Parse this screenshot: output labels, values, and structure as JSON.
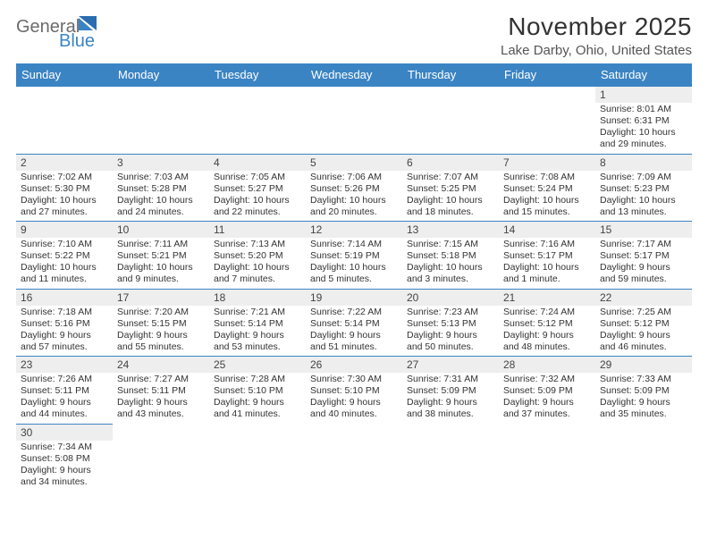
{
  "brand": {
    "word1": "General",
    "word2": "Blue",
    "text_color": "#6b6b6b",
    "accent_color": "#3b84c4"
  },
  "header": {
    "title": "November 2025",
    "location": "Lake Darby, Ohio, United States"
  },
  "colors": {
    "header_bg": "#3b84c4",
    "header_text": "#ffffff",
    "daynum_bg": "#eeeeee",
    "border": "#3b84c4"
  },
  "weekdays": [
    "Sunday",
    "Monday",
    "Tuesday",
    "Wednesday",
    "Thursday",
    "Friday",
    "Saturday"
  ],
  "weeks": [
    [
      null,
      null,
      null,
      null,
      null,
      null,
      {
        "n": "1",
        "sr": "Sunrise: 8:01 AM",
        "ss": "Sunset: 6:31 PM",
        "d1": "Daylight: 10 hours",
        "d2": "and 29 minutes."
      }
    ],
    [
      {
        "n": "2",
        "sr": "Sunrise: 7:02 AM",
        "ss": "Sunset: 5:30 PM",
        "d1": "Daylight: 10 hours",
        "d2": "and 27 minutes."
      },
      {
        "n": "3",
        "sr": "Sunrise: 7:03 AM",
        "ss": "Sunset: 5:28 PM",
        "d1": "Daylight: 10 hours",
        "d2": "and 24 minutes."
      },
      {
        "n": "4",
        "sr": "Sunrise: 7:05 AM",
        "ss": "Sunset: 5:27 PM",
        "d1": "Daylight: 10 hours",
        "d2": "and 22 minutes."
      },
      {
        "n": "5",
        "sr": "Sunrise: 7:06 AM",
        "ss": "Sunset: 5:26 PM",
        "d1": "Daylight: 10 hours",
        "d2": "and 20 minutes."
      },
      {
        "n": "6",
        "sr": "Sunrise: 7:07 AM",
        "ss": "Sunset: 5:25 PM",
        "d1": "Daylight: 10 hours",
        "d2": "and 18 minutes."
      },
      {
        "n": "7",
        "sr": "Sunrise: 7:08 AM",
        "ss": "Sunset: 5:24 PM",
        "d1": "Daylight: 10 hours",
        "d2": "and 15 minutes."
      },
      {
        "n": "8",
        "sr": "Sunrise: 7:09 AM",
        "ss": "Sunset: 5:23 PM",
        "d1": "Daylight: 10 hours",
        "d2": "and 13 minutes."
      }
    ],
    [
      {
        "n": "9",
        "sr": "Sunrise: 7:10 AM",
        "ss": "Sunset: 5:22 PM",
        "d1": "Daylight: 10 hours",
        "d2": "and 11 minutes."
      },
      {
        "n": "10",
        "sr": "Sunrise: 7:11 AM",
        "ss": "Sunset: 5:21 PM",
        "d1": "Daylight: 10 hours",
        "d2": "and 9 minutes."
      },
      {
        "n": "11",
        "sr": "Sunrise: 7:13 AM",
        "ss": "Sunset: 5:20 PM",
        "d1": "Daylight: 10 hours",
        "d2": "and 7 minutes."
      },
      {
        "n": "12",
        "sr": "Sunrise: 7:14 AM",
        "ss": "Sunset: 5:19 PM",
        "d1": "Daylight: 10 hours",
        "d2": "and 5 minutes."
      },
      {
        "n": "13",
        "sr": "Sunrise: 7:15 AM",
        "ss": "Sunset: 5:18 PM",
        "d1": "Daylight: 10 hours",
        "d2": "and 3 minutes."
      },
      {
        "n": "14",
        "sr": "Sunrise: 7:16 AM",
        "ss": "Sunset: 5:17 PM",
        "d1": "Daylight: 10 hours",
        "d2": "and 1 minute."
      },
      {
        "n": "15",
        "sr": "Sunrise: 7:17 AM",
        "ss": "Sunset: 5:17 PM",
        "d1": "Daylight: 9 hours",
        "d2": "and 59 minutes."
      }
    ],
    [
      {
        "n": "16",
        "sr": "Sunrise: 7:18 AM",
        "ss": "Sunset: 5:16 PM",
        "d1": "Daylight: 9 hours",
        "d2": "and 57 minutes."
      },
      {
        "n": "17",
        "sr": "Sunrise: 7:20 AM",
        "ss": "Sunset: 5:15 PM",
        "d1": "Daylight: 9 hours",
        "d2": "and 55 minutes."
      },
      {
        "n": "18",
        "sr": "Sunrise: 7:21 AM",
        "ss": "Sunset: 5:14 PM",
        "d1": "Daylight: 9 hours",
        "d2": "and 53 minutes."
      },
      {
        "n": "19",
        "sr": "Sunrise: 7:22 AM",
        "ss": "Sunset: 5:14 PM",
        "d1": "Daylight: 9 hours",
        "d2": "and 51 minutes."
      },
      {
        "n": "20",
        "sr": "Sunrise: 7:23 AM",
        "ss": "Sunset: 5:13 PM",
        "d1": "Daylight: 9 hours",
        "d2": "and 50 minutes."
      },
      {
        "n": "21",
        "sr": "Sunrise: 7:24 AM",
        "ss": "Sunset: 5:12 PM",
        "d1": "Daylight: 9 hours",
        "d2": "and 48 minutes."
      },
      {
        "n": "22",
        "sr": "Sunrise: 7:25 AM",
        "ss": "Sunset: 5:12 PM",
        "d1": "Daylight: 9 hours",
        "d2": "and 46 minutes."
      }
    ],
    [
      {
        "n": "23",
        "sr": "Sunrise: 7:26 AM",
        "ss": "Sunset: 5:11 PM",
        "d1": "Daylight: 9 hours",
        "d2": "and 44 minutes."
      },
      {
        "n": "24",
        "sr": "Sunrise: 7:27 AM",
        "ss": "Sunset: 5:11 PM",
        "d1": "Daylight: 9 hours",
        "d2": "and 43 minutes."
      },
      {
        "n": "25",
        "sr": "Sunrise: 7:28 AM",
        "ss": "Sunset: 5:10 PM",
        "d1": "Daylight: 9 hours",
        "d2": "and 41 minutes."
      },
      {
        "n": "26",
        "sr": "Sunrise: 7:30 AM",
        "ss": "Sunset: 5:10 PM",
        "d1": "Daylight: 9 hours",
        "d2": "and 40 minutes."
      },
      {
        "n": "27",
        "sr": "Sunrise: 7:31 AM",
        "ss": "Sunset: 5:09 PM",
        "d1": "Daylight: 9 hours",
        "d2": "and 38 minutes."
      },
      {
        "n": "28",
        "sr": "Sunrise: 7:32 AM",
        "ss": "Sunset: 5:09 PM",
        "d1": "Daylight: 9 hours",
        "d2": "and 37 minutes."
      },
      {
        "n": "29",
        "sr": "Sunrise: 7:33 AM",
        "ss": "Sunset: 5:09 PM",
        "d1": "Daylight: 9 hours",
        "d2": "and 35 minutes."
      }
    ],
    [
      {
        "n": "30",
        "sr": "Sunrise: 7:34 AM",
        "ss": "Sunset: 5:08 PM",
        "d1": "Daylight: 9 hours",
        "d2": "and 34 minutes."
      },
      null,
      null,
      null,
      null,
      null,
      null
    ]
  ]
}
